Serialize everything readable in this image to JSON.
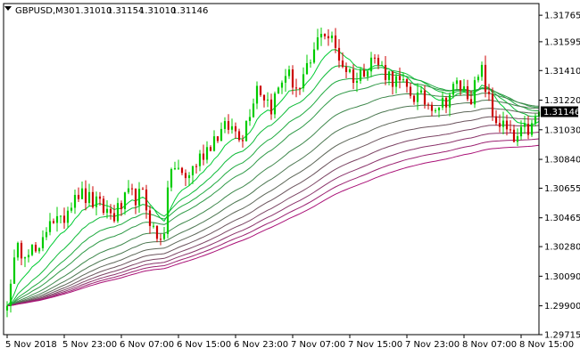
{
  "header": {
    "symbol": "GBPUSD,M30",
    "open": "1.31010",
    "high": "1.31154",
    "low": "1.31010",
    "close": "1.31146"
  },
  "colors": {
    "background": "#ffffff",
    "bull_candle": "#00cc00",
    "bear_candle": "#cc0000",
    "frame": "#000000",
    "price_tag_bg": "#000000",
    "price_tag_fg": "#ffffff",
    "ribbon_fast": "#00cc33",
    "ribbon_slow": "#aa1177"
  },
  "chart_data": {
    "type": "candlestick",
    "symbol": "GBPUSD",
    "timeframe": "M30",
    "current_price": "1.31146",
    "y_ticks": [
      "1.31765",
      "1.31595",
      "1.31410",
      "1.31220",
      "1.31030",
      "1.30840",
      "1.30655",
      "1.30465",
      "1.30280",
      "1.30090",
      "1.29900",
      "1.29715"
    ],
    "y_tick_values": [
      1.31765,
      1.31595,
      1.3141,
      1.3122,
      1.3103,
      1.3084,
      1.30655,
      1.30465,
      1.3028,
      1.3009,
      1.299,
      1.29715
    ],
    "ylim": [
      1.29715,
      1.3184
    ],
    "x_ticks": [
      "5 Nov 2018",
      "5 Nov 23:00",
      "6 Nov 07:00",
      "6 Nov 15:00",
      "6 Nov 23:00",
      "7 Nov 07:00",
      "7 Nov 15:00",
      "7 Nov 23:00",
      "8 Nov 07:00",
      "8 Nov 15:00"
    ],
    "x_tick_bar_index": [
      0,
      16,
      32,
      48,
      64,
      80,
      96,
      112,
      128,
      144
    ],
    "bar_count": 150,
    "close_path": [
      [
        0,
        1.299
      ],
      [
        1,
        1.3009
      ],
      [
        3,
        1.3025
      ],
      [
        6,
        1.3028
      ],
      [
        9,
        1.3022
      ],
      [
        12,
        1.3048
      ],
      [
        15,
        1.3042
      ],
      [
        19,
        1.3064
      ],
      [
        23,
        1.3058
      ],
      [
        27,
        1.3052
      ],
      [
        30,
        1.3048
      ],
      [
        34,
        1.306
      ],
      [
        38,
        1.306
      ],
      [
        42,
        1.3032
      ],
      [
        44,
        1.304
      ],
      [
        46,
        1.308
      ],
      [
        50,
        1.3072
      ],
      [
        54,
        1.3085
      ],
      [
        58,
        1.3098
      ],
      [
        62,
        1.3105
      ],
      [
        66,
        1.31
      ],
      [
        70,
        1.3132
      ],
      [
        74,
        1.3118
      ],
      [
        78,
        1.314
      ],
      [
        82,
        1.3128
      ],
      [
        86,
        1.3152
      ],
      [
        88,
        1.3168
      ],
      [
        91,
        1.316
      ],
      [
        94,
        1.3145
      ],
      [
        98,
        1.3135
      ],
      [
        102,
        1.315
      ],
      [
        106,
        1.314
      ],
      [
        110,
        1.3132
      ],
      [
        114,
        1.3125
      ],
      [
        118,
        1.312
      ],
      [
        122,
        1.312
      ],
      [
        126,
        1.3132
      ],
      [
        130,
        1.3125
      ],
      [
        133,
        1.314
      ],
      [
        136,
        1.3112
      ],
      [
        139,
        1.3105
      ],
      [
        142,
        1.3095
      ],
      [
        145,
        1.3102
      ],
      [
        147,
        1.3104
      ],
      [
        149,
        1.31146
      ]
    ],
    "ma_periods": [
      10,
      20,
      30,
      40,
      55,
      70,
      85,
      100,
      115,
      130,
      145,
      160
    ],
    "grid": false
  }
}
